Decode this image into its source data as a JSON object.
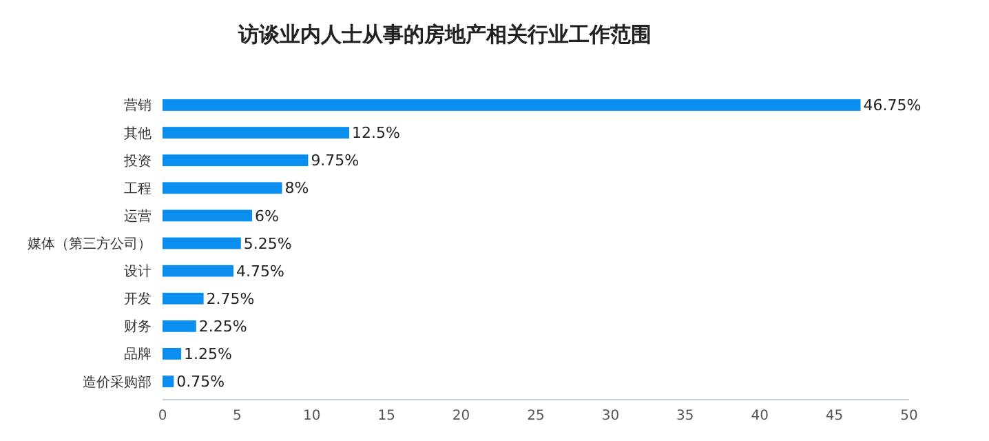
{
  "chart_data": {
    "type": "bar",
    "orientation": "horizontal",
    "title": "访谈业内人士从事的房地产相关行业工作范围",
    "categories": [
      "营销",
      "其他",
      "投资",
      "工程",
      "运营",
      "媒体（第三方公司）",
      "设计",
      "开发",
      "财务",
      "品牌",
      "造价采购部"
    ],
    "values": [
      46.75,
      12.5,
      9.75,
      8,
      6,
      5.25,
      4.75,
      2.75,
      2.25,
      1.25,
      0.75
    ],
    "value_labels": [
      "46.75%",
      "12.5%",
      "9.75%",
      "8%",
      "6%",
      "5.25%",
      "4.75%",
      "2.75%",
      "2.25%",
      "1.25%",
      "0.75%"
    ],
    "color": "#0a8ff0",
    "xlim": [
      0,
      50
    ],
    "xticks": [
      0,
      5,
      10,
      15,
      20,
      25,
      30,
      35,
      40,
      45,
      50
    ],
    "grid": false
  }
}
